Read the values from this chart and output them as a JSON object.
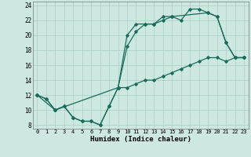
{
  "xlabel": "Humidex (Indice chaleur)",
  "xlim": [
    -0.5,
    23.5
  ],
  "ylim": [
    7.5,
    24.5
  ],
  "xticks": [
    0,
    1,
    2,
    3,
    4,
    5,
    6,
    7,
    8,
    9,
    10,
    11,
    12,
    13,
    14,
    15,
    16,
    17,
    18,
    19,
    20,
    21,
    22,
    23
  ],
  "yticks": [
    8,
    10,
    12,
    14,
    16,
    18,
    20,
    22,
    24
  ],
  "background_color": "#cce8e0",
  "grid_color": "#aacfc8",
  "line_color": "#1a6b5a",
  "line1_x": [
    0,
    1,
    2,
    3,
    4,
    5,
    6,
    7,
    8,
    9,
    10,
    11,
    12,
    13,
    14,
    15,
    16,
    17,
    18,
    19,
    20,
    21,
    22,
    23
  ],
  "line1_y": [
    12,
    11.5,
    10,
    10.5,
    9,
    8.5,
    8.5,
    8,
    10.5,
    13,
    13,
    13.5,
    14,
    14,
    14.5,
    15,
    15.5,
    16,
    16.5,
    17,
    17,
    16.5,
    17,
    17
  ],
  "line2_x": [
    0,
    1,
    2,
    3,
    4,
    5,
    6,
    7,
    8,
    9,
    10,
    11,
    12,
    13,
    14,
    15,
    16,
    17,
    18,
    19,
    20,
    21,
    22,
    23
  ],
  "line2_y": [
    12,
    11.5,
    10,
    10.5,
    9,
    8.5,
    8.5,
    8,
    10.5,
    13,
    18.5,
    20.5,
    21.5,
    21.5,
    22.5,
    22.5,
    22,
    23.5,
    23.5,
    23,
    22.5,
    19,
    17,
    17
  ],
  "line3_x": [
    0,
    2,
    9,
    10,
    11,
    12,
    13,
    14,
    15,
    19,
    20,
    21,
    22,
    23
  ],
  "line3_y": [
    12,
    10,
    13,
    20,
    21.5,
    21.5,
    21.5,
    22,
    22.5,
    23,
    22.5,
    19,
    17,
    17
  ]
}
